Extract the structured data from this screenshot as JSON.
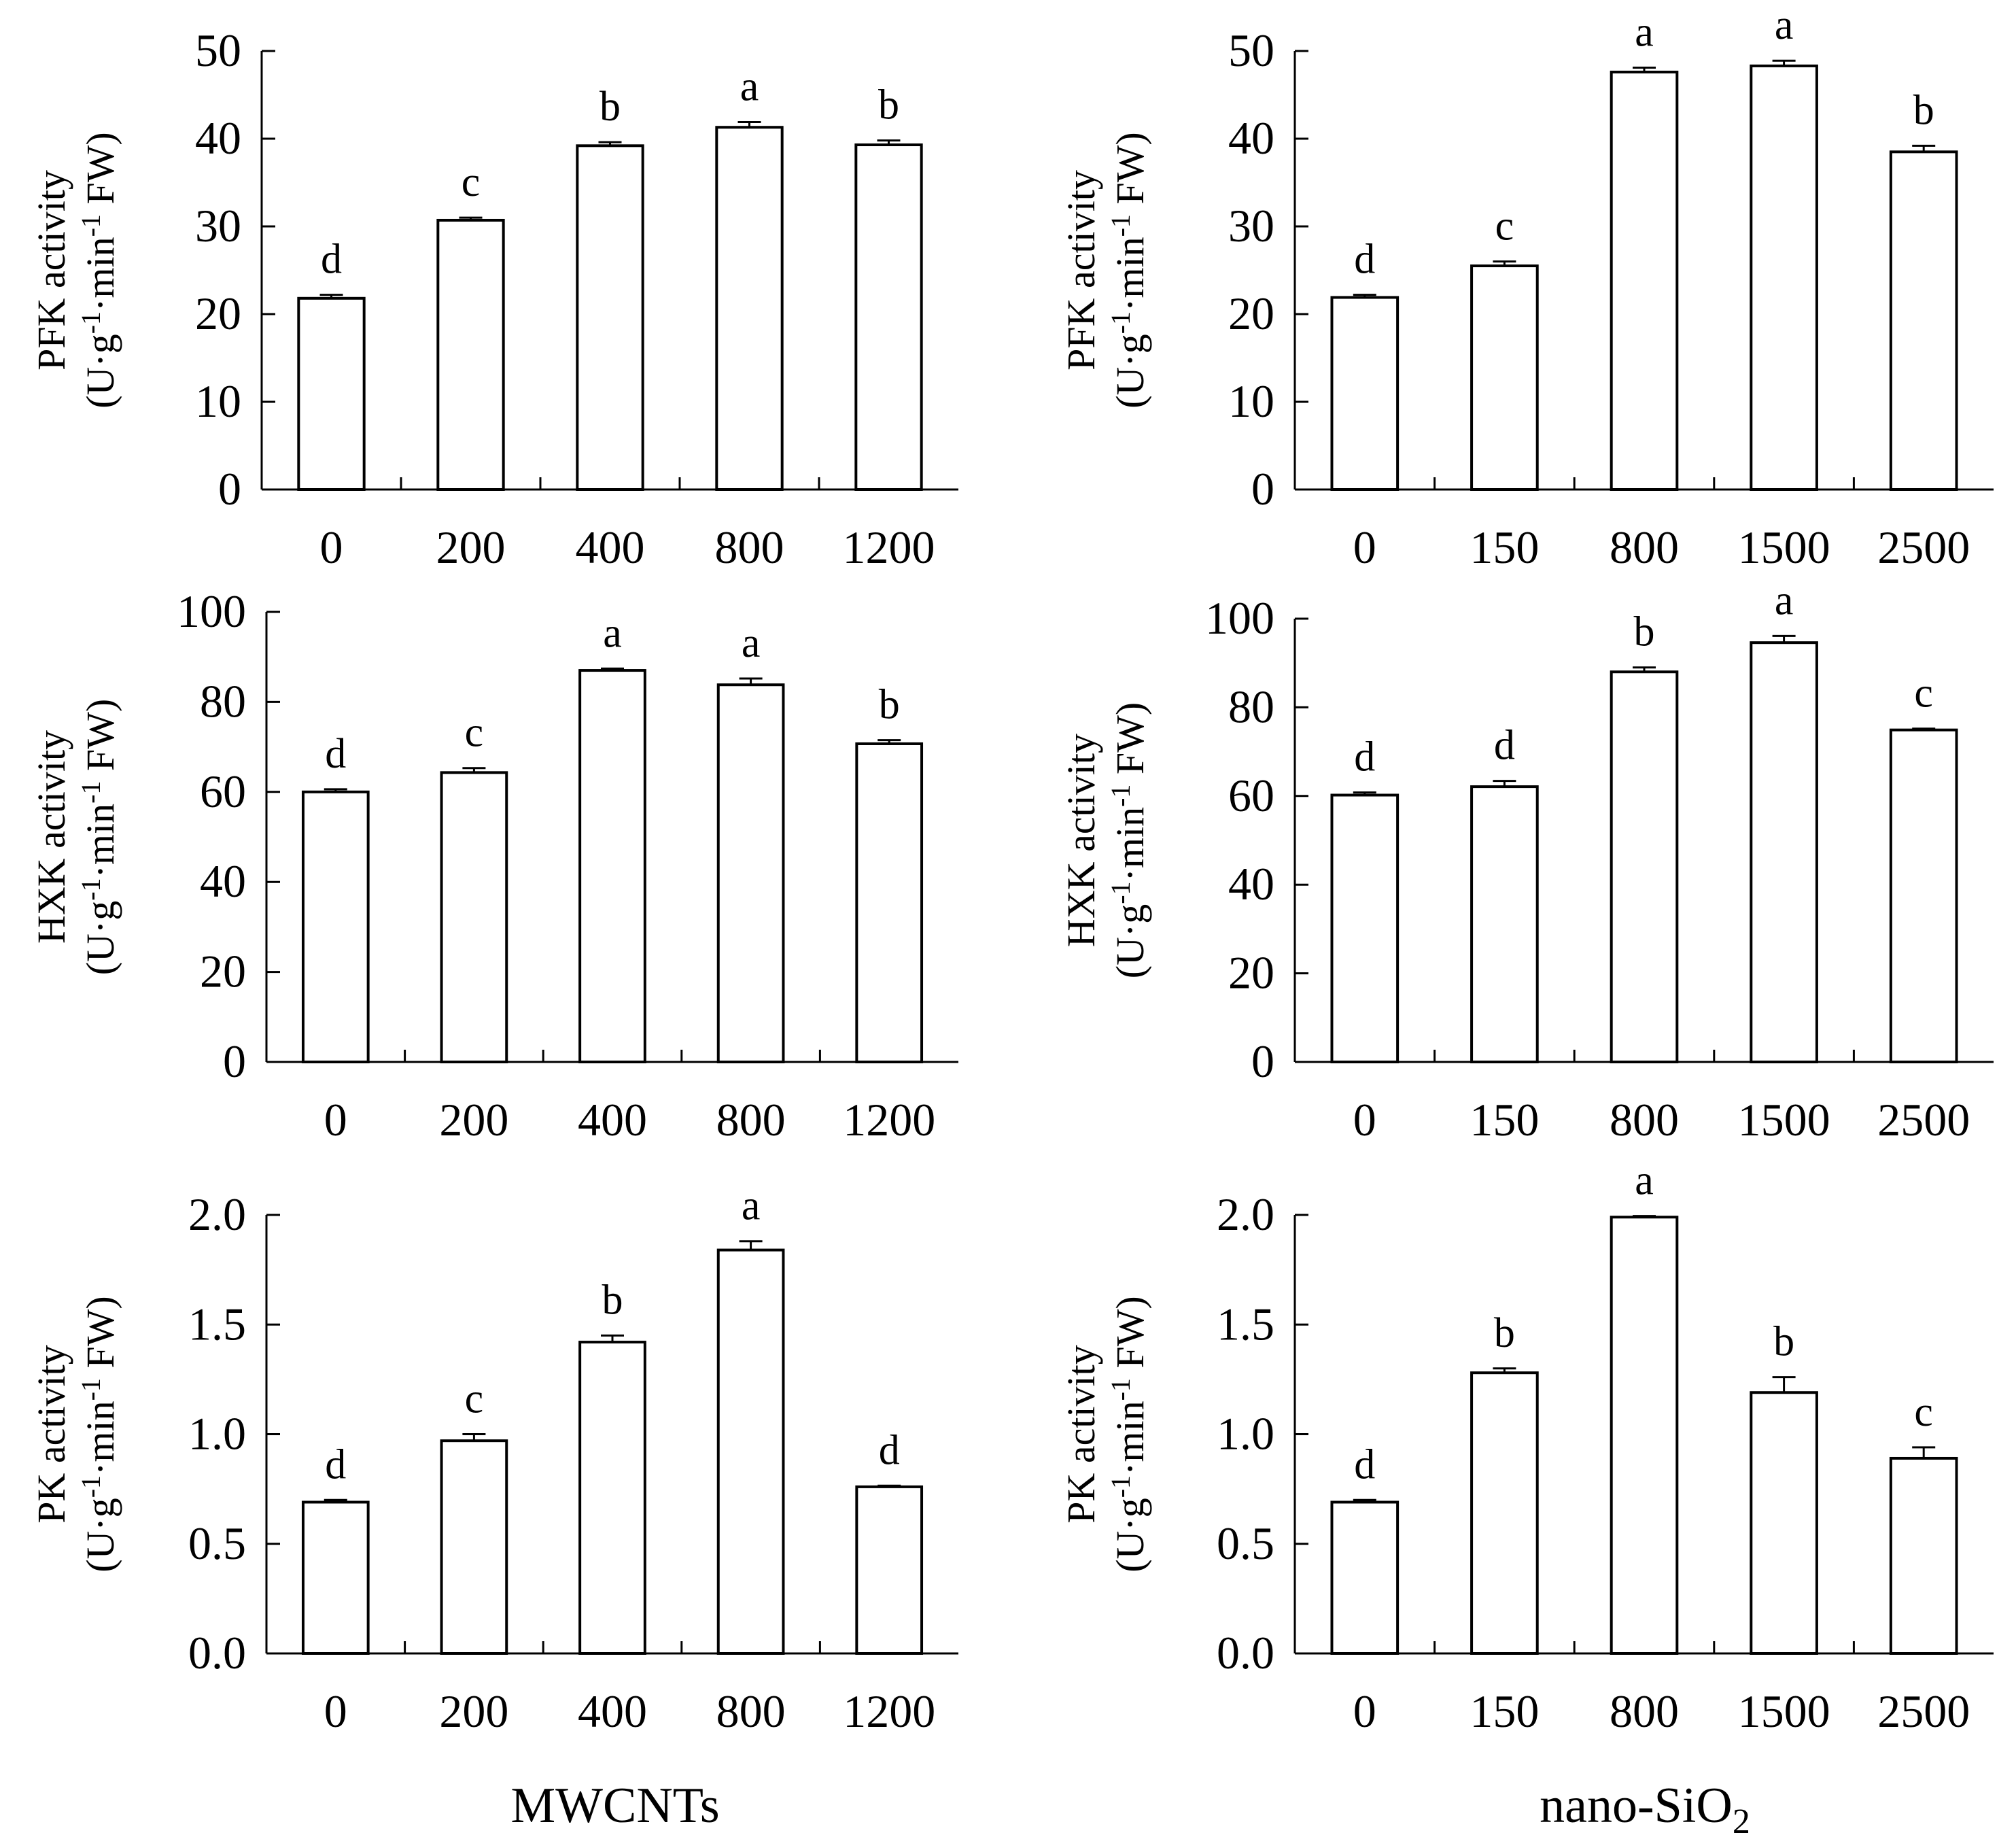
{
  "figure": {
    "x_axis_titles": {
      "left": "MWCNTs",
      "right": {
        "main": "nano-SiO",
        "subscript": "2"
      }
    }
  },
  "y_label_parts": {
    "unit_prefix": "(U·g",
    "sup_neg1": "-1",
    "min_part": "·min",
    "fw_suffix": " FW)"
  },
  "chart_data": [
    {
      "type": "bar",
      "panel": "top-left",
      "ylabel": "PFK activity",
      "unit": "(U·g-1·min-1 FW)",
      "xlabel": "",
      "categories": [
        "0",
        "200",
        "400",
        "800",
        "1200"
      ],
      "values": [
        21.8,
        30.7,
        39.2,
        41.3,
        39.3
      ],
      "errors": [
        0.4,
        0.3,
        0.4,
        0.6,
        0.5
      ],
      "letters": [
        "d",
        "c",
        "b",
        "a",
        "b"
      ],
      "ylim": [
        0,
        50
      ],
      "yticks": [
        "0",
        "10",
        "20",
        "30",
        "40",
        "50"
      ]
    },
    {
      "type": "bar",
      "panel": "top-right",
      "ylabel": "PFK activity",
      "unit": "(U·g-1·min-1 FW)",
      "xlabel": "",
      "categories": [
        "0",
        "150",
        "800",
        "1500",
        "2500"
      ],
      "values": [
        21.9,
        25.5,
        47.6,
        48.3,
        38.5
      ],
      "errors": [
        0.3,
        0.5,
        0.5,
        0.6,
        0.7
      ],
      "letters": [
        "d",
        "c",
        "a",
        "a",
        "b"
      ],
      "ylim": [
        0,
        50
      ],
      "yticks": [
        "0",
        "10",
        "20",
        "30",
        "40",
        "50"
      ]
    },
    {
      "type": "bar",
      "panel": "middle-left",
      "ylabel": "HXK activity",
      "unit": "(U·g-1·min-1 FW)",
      "xlabel": "",
      "categories": [
        "0",
        "200",
        "400",
        "800",
        "1200"
      ],
      "values": [
        60.0,
        64.3,
        87.0,
        83.8,
        70.7
      ],
      "errors": [
        0.6,
        1.0,
        0.4,
        1.4,
        0.8
      ],
      "letters": [
        "d",
        "c",
        "a",
        "a",
        "b"
      ],
      "ylim": [
        0,
        100
      ],
      "yticks": [
        "0",
        "20",
        "40",
        "60",
        "80",
        "100"
      ]
    },
    {
      "type": "bar",
      "panel": "middle-right",
      "ylabel": "HXK activity",
      "unit": "(U·g-1·min-1 FW)",
      "xlabel": "",
      "categories": [
        "0",
        "150",
        "800",
        "1500",
        "2500"
      ],
      "values": [
        60.2,
        62.1,
        88.0,
        94.6,
        74.9
      ],
      "errors": [
        0.6,
        1.3,
        1.0,
        1.5,
        0.3
      ],
      "letters": [
        "d",
        "d",
        "b",
        "a",
        "c"
      ],
      "ylim": [
        0,
        100
      ],
      "yticks": [
        "0",
        "20",
        "40",
        "60",
        "80",
        "100"
      ]
    },
    {
      "type": "bar",
      "panel": "bottom-left",
      "ylabel": "PK activity",
      "unit": "(U·g-1·min-1 FW)",
      "xlabel": "MWCNTs",
      "categories": [
        "0",
        "200",
        "400",
        "800",
        "1200"
      ],
      "values": [
        0.69,
        0.97,
        1.42,
        1.84,
        0.76
      ],
      "errors": [
        0.01,
        0.03,
        0.03,
        0.04,
        0.005
      ],
      "letters": [
        "d",
        "c",
        "b",
        "a",
        "d"
      ],
      "ylim": [
        0,
        2.0
      ],
      "yticks": [
        "0.0",
        "0.5",
        "1.0",
        "1.5",
        "2.0"
      ]
    },
    {
      "type": "bar",
      "panel": "bottom-right",
      "ylabel": "PK activity",
      "unit": "(U·g-1·min-1 FW)",
      "xlabel": "nano-SiO2",
      "categories": [
        "0",
        "150",
        "800",
        "1500",
        "2500"
      ],
      "values": [
        0.69,
        1.28,
        1.99,
        1.19,
        0.89
      ],
      "errors": [
        0.01,
        0.02,
        0.005,
        0.07,
        0.05
      ],
      "letters": [
        "d",
        "b",
        "a",
        "b",
        "c"
      ],
      "ylim": [
        0,
        2.0
      ],
      "yticks": [
        "0.0",
        "0.5",
        "1.0",
        "1.5",
        "2.0"
      ]
    }
  ]
}
